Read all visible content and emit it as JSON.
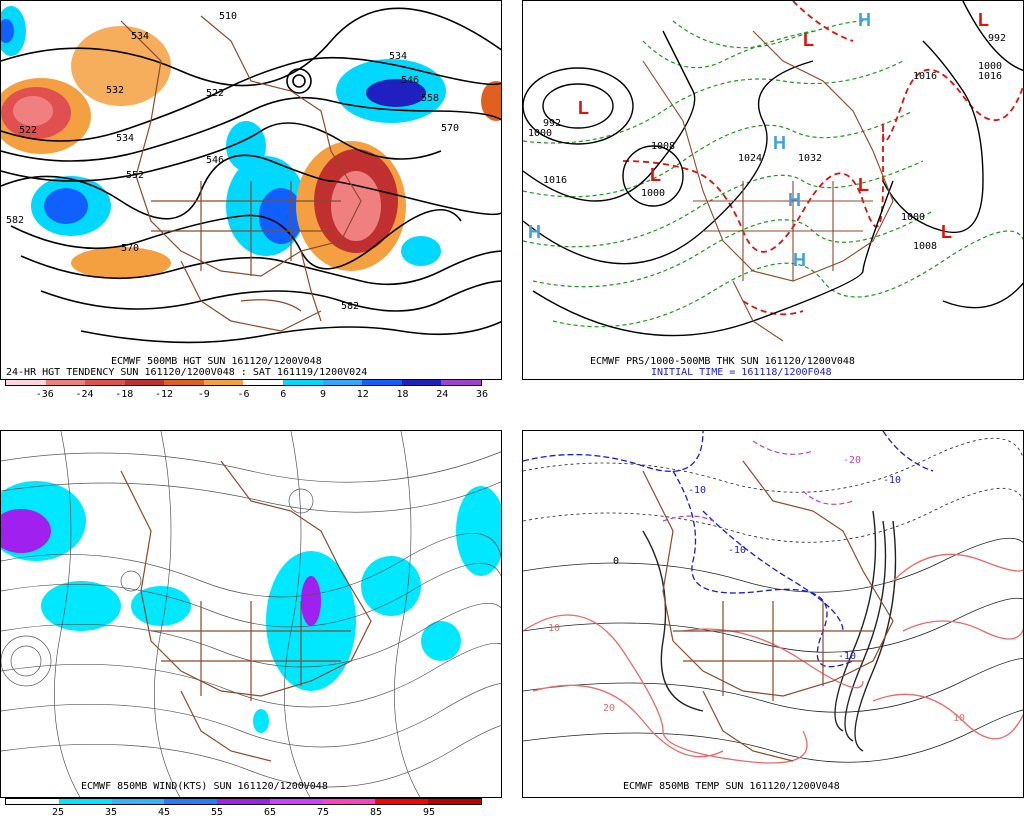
{
  "panels": {
    "p500": {
      "caption1": "ECMWF 500MB HGT SUN 161120/1200V048",
      "caption2": "24-HR HGT TENDENCY SUN 161120/1200V048 : SAT 161119/1200V024",
      "contour_labels": [
        "534",
        "522",
        "532",
        "546",
        "570",
        "582",
        "534",
        "546",
        "558",
        "570",
        "510",
        "522",
        "534",
        "552",
        "582"
      ],
      "colorbar_colors": [
        "#ffd4dc",
        "#f08080",
        "#e05050",
        "#c03030",
        "#e06020",
        "#f5a040",
        "#fff",
        "#00d8ff",
        "#30a8ff",
        "#1060ff",
        "#2020c0",
        "#a040d0"
      ],
      "colorbar_ticks": [
        "-36",
        "-24",
        "-18",
        "-12",
        "-9",
        "-6",
        "6",
        "9",
        "12",
        "18",
        "24",
        "36"
      ]
    },
    "pthk": {
      "caption1": "ECMWF PRS/1000-500MB THK SUN 161120/1200V048",
      "caption2": "INITIAL TIME = 161118/1200F048",
      "pressure_labels": [
        "992",
        "1000",
        "1016",
        "1000",
        "1008",
        "1000",
        "1016",
        "1024",
        "1032",
        "1016",
        "1000",
        "1008",
        "992"
      ],
      "high_marker": "H",
      "low_marker": "L"
    },
    "pwind": {
      "caption1": "ECMWF 850MB WIND(KTS) SUN 161120/1200V048",
      "colorbar_colors": [
        "#fff",
        "#00e8ff",
        "#30b8ff",
        "#2080ff",
        "#a020f0",
        "#d040ff",
        "#ff40c0",
        "#ff0000",
        "#c00000"
      ],
      "colorbar_ticks": [
        "25",
        "35",
        "45",
        "55",
        "65",
        "75",
        "85",
        "95"
      ]
    },
    "ptemp": {
      "caption1": "ECMWF 850MB TEMP SUN 161120/1200V048",
      "temp_labels": [
        "-10",
        "-10",
        "-10",
        "-20",
        "-10",
        "0",
        "10",
        "10",
        "20"
      ]
    }
  }
}
